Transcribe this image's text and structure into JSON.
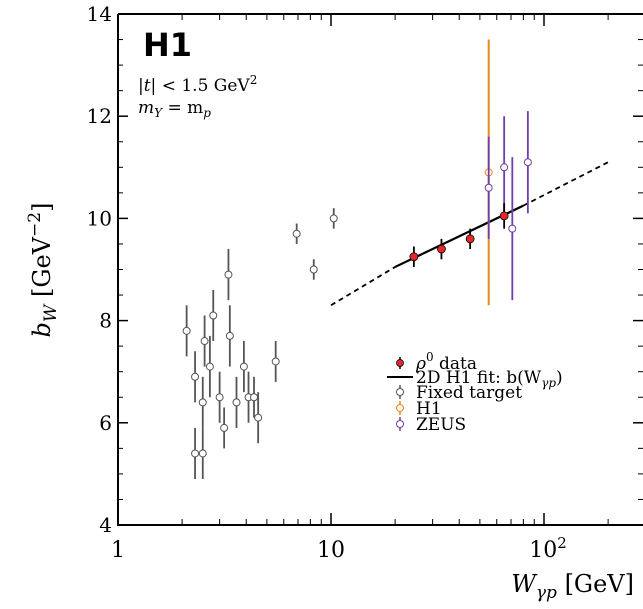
{
  "chart_data": {
    "type": "scatter",
    "logo": "H1",
    "annotations": {
      "t_cut": {
        "t": "|t|",
        "lt": " < 1.5 GeV",
        "sup": "2"
      },
      "my_eq_mp": {
        "m": "m",
        "sub1": "Y",
        "eq": " = m",
        "sub2": "p"
      }
    },
    "xlabel": {
      "main": "W",
      "sub": "γp",
      "unit": "  [GeV]"
    },
    "ylabel": {
      "main": "b",
      "sub": "W",
      "unit": "  [GeV",
      "sup": "−2",
      "close": "]"
    },
    "x_scale": "log",
    "xlim": [
      1,
      300
    ],
    "ylim": [
      4,
      14
    ],
    "y_ticks": [
      {
        "value": 4,
        "label": "4"
      },
      {
        "value": 6,
        "label": "6"
      },
      {
        "value": 8,
        "label": "8"
      },
      {
        "value": 10,
        "label": "10"
      },
      {
        "value": 12,
        "label": "12"
      },
      {
        "value": 14,
        "label": "14"
      }
    ],
    "x_ticks": [
      {
        "value": 1,
        "label": "1"
      },
      {
        "value": 10,
        "label": "10"
      },
      {
        "value": 100,
        "label": "10",
        "sup": "2"
      }
    ],
    "legend": {
      "placement": "lower-right",
      "entries": [
        {
          "key": "rho",
          "main": "ρ",
          "sup": "0",
          "rest": " data"
        },
        {
          "key": "fit",
          "main": "2D H1 fit: b(W",
          "sub": "γp",
          "rest": ")"
        },
        {
          "key": "fixed",
          "main": "Fixed target"
        },
        {
          "key": "h1",
          "main": "H1"
        },
        {
          "key": "zeus",
          "main": "ZEUS"
        }
      ]
    },
    "series": [
      {
        "key": "rho",
        "color": "#e8262a",
        "marker": "filled",
        "points": [
          {
            "x": 24.5,
            "y": 9.25,
            "err": 0.2
          },
          {
            "x": 33,
            "y": 9.4,
            "err": 0.2
          },
          {
            "x": 45,
            "y": 9.6,
            "err": 0.2
          },
          {
            "x": 65,
            "y": 10.05,
            "err": 0.25
          }
        ]
      },
      {
        "key": "fixed",
        "color": "#555555",
        "marker": "open",
        "points": [
          {
            "x": 2.1,
            "y": 7.8,
            "err": 0.5
          },
          {
            "x": 2.3,
            "y": 6.9,
            "err": 0.5
          },
          {
            "x": 2.3,
            "y": 5.4,
            "err": 0.5
          },
          {
            "x": 2.5,
            "y": 6.4,
            "err": 0.5
          },
          {
            "x": 2.5,
            "y": 5.4,
            "err": 0.5
          },
          {
            "x": 2.55,
            "y": 7.6,
            "err": 0.5
          },
          {
            "x": 2.7,
            "y": 7.1,
            "err": 0.6
          },
          {
            "x": 2.8,
            "y": 8.1,
            "err": 0.5
          },
          {
            "x": 3.0,
            "y": 6.5,
            "err": 0.5
          },
          {
            "x": 3.15,
            "y": 5.9,
            "err": 0.4
          },
          {
            "x": 3.3,
            "y": 8.9,
            "err": 0.5
          },
          {
            "x": 3.35,
            "y": 7.7,
            "err": 0.6
          },
          {
            "x": 3.6,
            "y": 6.4,
            "err": 0.5
          },
          {
            "x": 3.9,
            "y": 7.1,
            "err": 0.5
          },
          {
            "x": 4.1,
            "y": 6.5,
            "err": 0.5
          },
          {
            "x": 4.35,
            "y": 6.5,
            "err": 0.4
          },
          {
            "x": 4.55,
            "y": 6.1,
            "err": 0.5
          },
          {
            "x": 5.5,
            "y": 7.2,
            "err": 0.4
          },
          {
            "x": 6.9,
            "y": 9.7,
            "err": 0.2
          },
          {
            "x": 8.3,
            "y": 9.0,
            "err": 0.2
          },
          {
            "x": 10.3,
            "y": 10.0,
            "err": 0.2
          }
        ]
      },
      {
        "key": "h1",
        "color": "#f0861d",
        "marker": "open",
        "points": [
          {
            "x": 55,
            "y": 10.9,
            "err": 2.6
          }
        ]
      },
      {
        "key": "zeus",
        "color": "#6e3fa8",
        "marker": "open",
        "points": [
          {
            "x": 55,
            "y": 10.6,
            "err": 1.0
          },
          {
            "x": 65,
            "y": 11.0,
            "err": 1.0
          },
          {
            "x": 71,
            "y": 9.8,
            "err": 1.4
          },
          {
            "x": 84,
            "y": 11.1,
            "err": 1.0
          }
        ]
      }
    ],
    "fit_line": {
      "color": "#000000",
      "solid": {
        "x1": 20,
        "y1": 9.05,
        "x2": 80,
        "y2": 10.25
      },
      "dashed_segments": [
        {
          "x1": 10,
          "y1": 8.3,
          "x2": 20,
          "y2": 9.05
        },
        {
          "x1": 80,
          "y1": 10.25,
          "x2": 200,
          "y2": 11.1
        }
      ]
    }
  }
}
